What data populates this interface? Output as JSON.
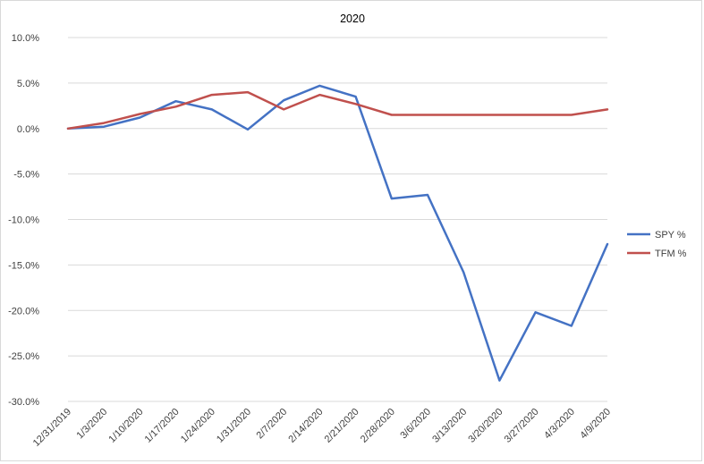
{
  "chart_data": {
    "type": "line",
    "title": "2020",
    "xlabel": "",
    "ylabel": "",
    "ylim": [
      -0.3,
      0.1
    ],
    "ytick_step": 0.05,
    "ytick_labels": [
      "10.0%",
      "5.0%",
      "0.0%",
      "-5.0%",
      "-10.0%",
      "-15.0%",
      "-20.0%",
      "-25.0%",
      "-30.0%"
    ],
    "categories": [
      "12/31/2019",
      "1/3/2020",
      "1/10/2020",
      "1/17/2020",
      "1/24/2020",
      "1/31/2020",
      "2/7/2020",
      "2/14/2020",
      "2/21/2020",
      "2/28/2020",
      "3/6/2020",
      "3/13/2020",
      "3/20/2020",
      "3/27/2020",
      "4/3/2020",
      "4/9/2020"
    ],
    "series": [
      {
        "name": "SPY %",
        "color": "#4472c4",
        "values": [
          0.0,
          0.002,
          0.012,
          0.03,
          0.021,
          -0.001,
          0.031,
          0.047,
          0.035,
          -0.077,
          -0.073,
          -0.158,
          -0.277,
          -0.202,
          -0.217,
          -0.127
        ]
      },
      {
        "name": "TFM %",
        "color": "#c0504d",
        "values": [
          0.0,
          0.006,
          0.016,
          0.024,
          0.037,
          0.04,
          0.021,
          0.037,
          0.027,
          0.015,
          0.015,
          0.015,
          0.015,
          0.015,
          0.015,
          0.021
        ]
      }
    ],
    "grid": true,
    "legend_position": "right"
  }
}
